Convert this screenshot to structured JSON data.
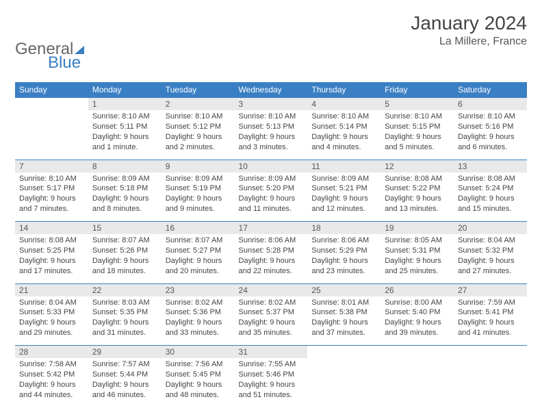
{
  "brand": {
    "part1": "General",
    "part2": "Blue"
  },
  "title": "January 2024",
  "location": "La Millere, France",
  "colors": {
    "header_bg": "#3a7fc4",
    "header_text": "#ffffff",
    "daynum_bg": "#e9e9e9",
    "border": "#3a7fc4",
    "body_text": "#444444",
    "page_bg": "#ffffff"
  },
  "typography": {
    "title_fontsize": 28,
    "location_fontsize": 16,
    "header_fontsize": 12,
    "cell_fontsize": 11
  },
  "layout": {
    "columns": 7,
    "rows": 5
  },
  "weekdays": [
    "Sunday",
    "Monday",
    "Tuesday",
    "Wednesday",
    "Thursday",
    "Friday",
    "Saturday"
  ],
  "weeks": [
    [
      {
        "num": "",
        "lines": []
      },
      {
        "num": "1",
        "lines": [
          "Sunrise: 8:10 AM",
          "Sunset: 5:11 PM",
          "Daylight: 9 hours",
          "and 1 minute."
        ]
      },
      {
        "num": "2",
        "lines": [
          "Sunrise: 8:10 AM",
          "Sunset: 5:12 PM",
          "Daylight: 9 hours",
          "and 2 minutes."
        ]
      },
      {
        "num": "3",
        "lines": [
          "Sunrise: 8:10 AM",
          "Sunset: 5:13 PM",
          "Daylight: 9 hours",
          "and 3 minutes."
        ]
      },
      {
        "num": "4",
        "lines": [
          "Sunrise: 8:10 AM",
          "Sunset: 5:14 PM",
          "Daylight: 9 hours",
          "and 4 minutes."
        ]
      },
      {
        "num": "5",
        "lines": [
          "Sunrise: 8:10 AM",
          "Sunset: 5:15 PM",
          "Daylight: 9 hours",
          "and 5 minutes."
        ]
      },
      {
        "num": "6",
        "lines": [
          "Sunrise: 8:10 AM",
          "Sunset: 5:16 PM",
          "Daylight: 9 hours",
          "and 6 minutes."
        ]
      }
    ],
    [
      {
        "num": "7",
        "lines": [
          "Sunrise: 8:10 AM",
          "Sunset: 5:17 PM",
          "Daylight: 9 hours",
          "and 7 minutes."
        ]
      },
      {
        "num": "8",
        "lines": [
          "Sunrise: 8:09 AM",
          "Sunset: 5:18 PM",
          "Daylight: 9 hours",
          "and 8 minutes."
        ]
      },
      {
        "num": "9",
        "lines": [
          "Sunrise: 8:09 AM",
          "Sunset: 5:19 PM",
          "Daylight: 9 hours",
          "and 9 minutes."
        ]
      },
      {
        "num": "10",
        "lines": [
          "Sunrise: 8:09 AM",
          "Sunset: 5:20 PM",
          "Daylight: 9 hours",
          "and 11 minutes."
        ]
      },
      {
        "num": "11",
        "lines": [
          "Sunrise: 8:09 AM",
          "Sunset: 5:21 PM",
          "Daylight: 9 hours",
          "and 12 minutes."
        ]
      },
      {
        "num": "12",
        "lines": [
          "Sunrise: 8:08 AM",
          "Sunset: 5:22 PM",
          "Daylight: 9 hours",
          "and 13 minutes."
        ]
      },
      {
        "num": "13",
        "lines": [
          "Sunrise: 8:08 AM",
          "Sunset: 5:24 PM",
          "Daylight: 9 hours",
          "and 15 minutes."
        ]
      }
    ],
    [
      {
        "num": "14",
        "lines": [
          "Sunrise: 8:08 AM",
          "Sunset: 5:25 PM",
          "Daylight: 9 hours",
          "and 17 minutes."
        ]
      },
      {
        "num": "15",
        "lines": [
          "Sunrise: 8:07 AM",
          "Sunset: 5:26 PM",
          "Daylight: 9 hours",
          "and 18 minutes."
        ]
      },
      {
        "num": "16",
        "lines": [
          "Sunrise: 8:07 AM",
          "Sunset: 5:27 PM",
          "Daylight: 9 hours",
          "and 20 minutes."
        ]
      },
      {
        "num": "17",
        "lines": [
          "Sunrise: 8:06 AM",
          "Sunset: 5:28 PM",
          "Daylight: 9 hours",
          "and 22 minutes."
        ]
      },
      {
        "num": "18",
        "lines": [
          "Sunrise: 8:06 AM",
          "Sunset: 5:29 PM",
          "Daylight: 9 hours",
          "and 23 minutes."
        ]
      },
      {
        "num": "19",
        "lines": [
          "Sunrise: 8:05 AM",
          "Sunset: 5:31 PM",
          "Daylight: 9 hours",
          "and 25 minutes."
        ]
      },
      {
        "num": "20",
        "lines": [
          "Sunrise: 8:04 AM",
          "Sunset: 5:32 PM",
          "Daylight: 9 hours",
          "and 27 minutes."
        ]
      }
    ],
    [
      {
        "num": "21",
        "lines": [
          "Sunrise: 8:04 AM",
          "Sunset: 5:33 PM",
          "Daylight: 9 hours",
          "and 29 minutes."
        ]
      },
      {
        "num": "22",
        "lines": [
          "Sunrise: 8:03 AM",
          "Sunset: 5:35 PM",
          "Daylight: 9 hours",
          "and 31 minutes."
        ]
      },
      {
        "num": "23",
        "lines": [
          "Sunrise: 8:02 AM",
          "Sunset: 5:36 PM",
          "Daylight: 9 hours",
          "and 33 minutes."
        ]
      },
      {
        "num": "24",
        "lines": [
          "Sunrise: 8:02 AM",
          "Sunset: 5:37 PM",
          "Daylight: 9 hours",
          "and 35 minutes."
        ]
      },
      {
        "num": "25",
        "lines": [
          "Sunrise: 8:01 AM",
          "Sunset: 5:38 PM",
          "Daylight: 9 hours",
          "and 37 minutes."
        ]
      },
      {
        "num": "26",
        "lines": [
          "Sunrise: 8:00 AM",
          "Sunset: 5:40 PM",
          "Daylight: 9 hours",
          "and 39 minutes."
        ]
      },
      {
        "num": "27",
        "lines": [
          "Sunrise: 7:59 AM",
          "Sunset: 5:41 PM",
          "Daylight: 9 hours",
          "and 41 minutes."
        ]
      }
    ],
    [
      {
        "num": "28",
        "lines": [
          "Sunrise: 7:58 AM",
          "Sunset: 5:42 PM",
          "Daylight: 9 hours",
          "and 44 minutes."
        ]
      },
      {
        "num": "29",
        "lines": [
          "Sunrise: 7:57 AM",
          "Sunset: 5:44 PM",
          "Daylight: 9 hours",
          "and 46 minutes."
        ]
      },
      {
        "num": "30",
        "lines": [
          "Sunrise: 7:56 AM",
          "Sunset: 5:45 PM",
          "Daylight: 9 hours",
          "and 48 minutes."
        ]
      },
      {
        "num": "31",
        "lines": [
          "Sunrise: 7:55 AM",
          "Sunset: 5:46 PM",
          "Daylight: 9 hours",
          "and 51 minutes."
        ]
      },
      {
        "num": "",
        "lines": []
      },
      {
        "num": "",
        "lines": []
      },
      {
        "num": "",
        "lines": []
      }
    ]
  ]
}
